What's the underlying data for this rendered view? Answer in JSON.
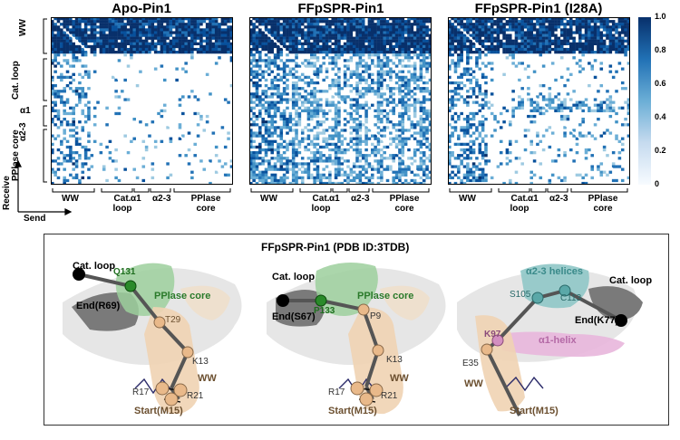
{
  "panels": [
    {
      "title": "Apo-Pin1"
    },
    {
      "title": "FFpSPR-Pin1"
    },
    {
      "title": "FFpSPR-Pin1 (I28A)"
    }
  ],
  "axis": {
    "y_groups": [
      "WW",
      "Cat. loop",
      "α1",
      "α2-3",
      "PPlase core"
    ],
    "x_groups": [
      "WW",
      "Cat. loop",
      "α1",
      "α2-3",
      "PPlase core"
    ],
    "receive": "Receive",
    "send": "Send"
  },
  "colorbar": {
    "ticks": [
      "1.0",
      "0.8",
      "0.6",
      "0.4",
      "0.2",
      "0"
    ],
    "colors": [
      "#f7fbff",
      "#c6dbef",
      "#6baed6",
      "#2171b5",
      "#08306b"
    ]
  },
  "bottom": {
    "title": "FFpSPR-Pin1 (PDB ID:3TDB)",
    "s1": {
      "cat": "Cat. loop",
      "q": "Q131",
      "core": "PPlase core",
      "end": "End(R69)",
      "t29": "T29",
      "k13": "K13",
      "ww": "WW",
      "r17": "R17",
      "r21": "R21",
      "start": "Start(M15)"
    },
    "s2": {
      "cat": "Cat. loop",
      "p133": "P133",
      "core": "PPlase core",
      "end": "End(S67)",
      "p9": "P9",
      "k13": "K13",
      "ww": "WW",
      "r17": "R17",
      "r21": "R21",
      "start": "Start(M15)"
    },
    "s3": {
      "helices": "α2-3 helices",
      "s105": "S105",
      "c113": "C113",
      "cat": "Cat. loop",
      "end": "End(K77)",
      "k97": "K97",
      "a1": "α1-helix",
      "e35": "E35",
      "ww": "WW",
      "start": "Start(M15)"
    }
  }
}
